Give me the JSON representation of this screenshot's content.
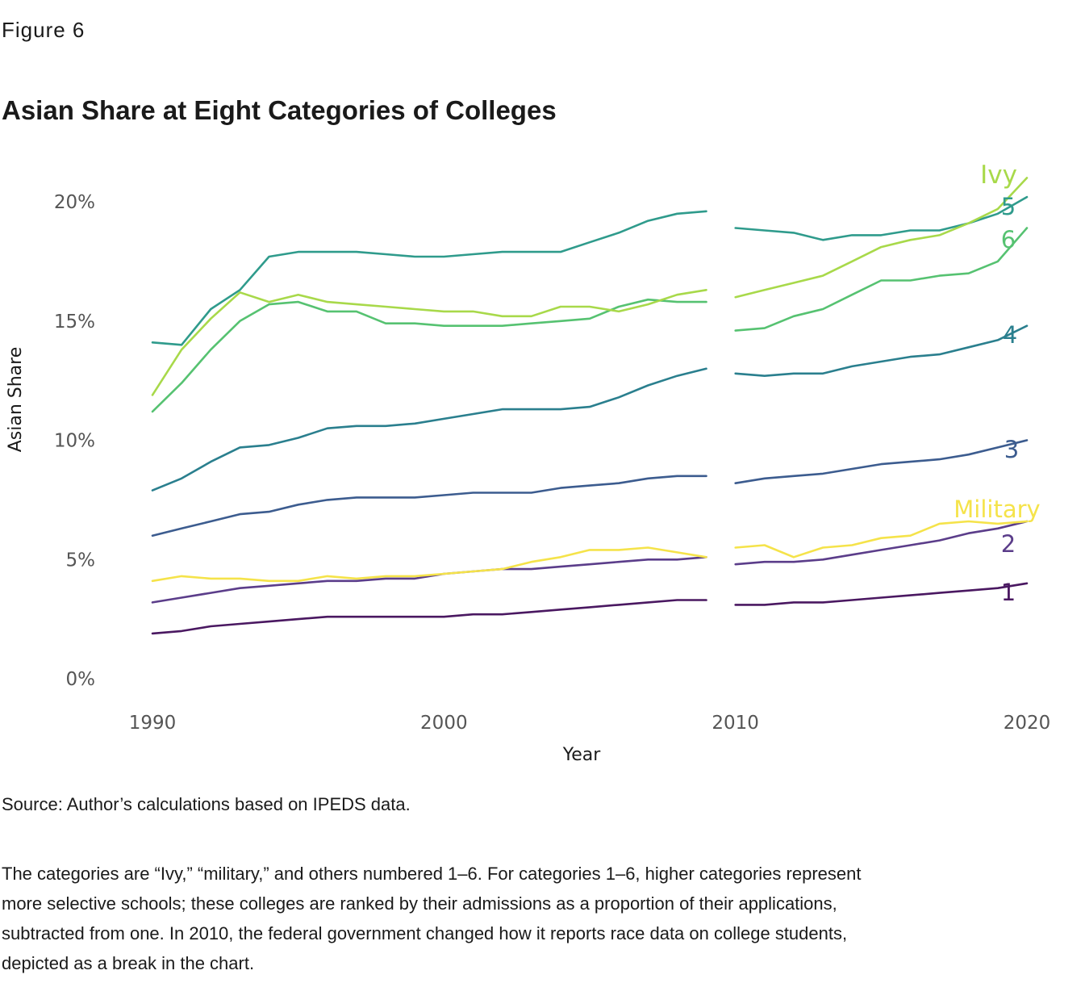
{
  "figure_label": "Figure 6",
  "title": "Asian Share at Eight Categories of Colleges",
  "source": "Source: Author’s calculations based on IPEDS data.",
  "note": "The categories are “Ivy,” “military,” and others numbered 1–6. For categories 1–6, higher categories represent more selective schools; these colleges are ranked by their admissions as a proportion of their applications, subtracted from one. In 2010, the federal government changed how it reports race data on college students, depicted as a break in the chart.",
  "chart_data": {
    "type": "line",
    "title": "Asian Share at Eight Categories of Colleges",
    "xlabel": "Year",
    "ylabel": "Asian Share",
    "xlim": [
      1990,
      2020
    ],
    "ylim": [
      0,
      20
    ],
    "x_ticks": [
      1990,
      2000,
      2010,
      2020
    ],
    "x_tick_labels": [
      "1990",
      "2000",
      "2010",
      "2020"
    ],
    "y_ticks": [
      0,
      5,
      10,
      15,
      20
    ],
    "y_tick_labels": [
      "0%",
      "5%",
      "10%",
      "15%",
      "20%"
    ],
    "grid": false,
    "legend": "direct labels at line ends",
    "series": [
      {
        "name": "Ivy",
        "color": "#a8d94a",
        "segments": [
          {
            "x": [
              1990,
              1991,
              1992,
              1993,
              1994,
              1995,
              1996,
              1997,
              1998,
              1999,
              2000,
              2001,
              2002,
              2003,
              2004,
              2005,
              2006,
              2007,
              2008,
              2009
            ],
            "y": [
              11.9,
              13.8,
              15.1,
              16.2,
              15.8,
              16.1,
              15.8,
              15.7,
              15.6,
              15.5,
              15.4,
              15.4,
              15.2,
              15.2,
              15.6,
              15.6,
              15.4,
              15.7,
              16.1,
              16.3
            ]
          },
          {
            "x": [
              2010,
              2011,
              2012,
              2013,
              2014,
              2015,
              2016,
              2017,
              2018,
              2019,
              2020
            ],
            "y": [
              16.0,
              16.3,
              16.6,
              16.9,
              17.5,
              18.1,
              18.4,
              18.6,
              19.1,
              19.7,
              21.0
            ]
          }
        ]
      },
      {
        "name": "5",
        "color": "#2f9b8c",
        "segments": [
          {
            "x": [
              1990,
              1991,
              1992,
              1993,
              1994,
              1995,
              1996,
              1997,
              1998,
              1999,
              2000,
              2001,
              2002,
              2003,
              2004,
              2005,
              2006,
              2007,
              2008,
              2009
            ],
            "y": [
              14.1,
              14.0,
              15.5,
              16.3,
              17.7,
              17.9,
              17.9,
              17.9,
              17.8,
              17.7,
              17.7,
              17.8,
              17.9,
              17.9,
              17.9,
              18.3,
              18.7,
              19.2,
              19.5,
              19.6
            ]
          },
          {
            "x": [
              2010,
              2011,
              2012,
              2013,
              2014,
              2015,
              2016,
              2017,
              2018,
              2019,
              2020
            ],
            "y": [
              18.9,
              18.8,
              18.7,
              18.4,
              18.6,
              18.6,
              18.8,
              18.8,
              19.1,
              19.5,
              20.2
            ]
          }
        ]
      },
      {
        "name": "6",
        "color": "#56c271",
        "segments": [
          {
            "x": [
              1990,
              1991,
              1992,
              1993,
              1994,
              1995,
              1996,
              1997,
              1998,
              1999,
              2000,
              2001,
              2002,
              2003,
              2004,
              2005,
              2006,
              2007,
              2008,
              2009
            ],
            "y": [
              11.2,
              12.4,
              13.8,
              15.0,
              15.7,
              15.8,
              15.4,
              15.4,
              14.9,
              14.9,
              14.8,
              14.8,
              14.8,
              14.9,
              15.0,
              15.1,
              15.6,
              15.9,
              15.8,
              15.8
            ]
          },
          {
            "x": [
              2010,
              2011,
              2012,
              2013,
              2014,
              2015,
              2016,
              2017,
              2018,
              2019,
              2020
            ],
            "y": [
              14.6,
              14.7,
              15.2,
              15.5,
              16.1,
              16.7,
              16.7,
              16.9,
              17.0,
              17.5,
              18.9
            ]
          }
        ]
      },
      {
        "name": "4",
        "color": "#2a7f8e",
        "segments": [
          {
            "x": [
              1990,
              1991,
              1992,
              1993,
              1994,
              1995,
              1996,
              1997,
              1998,
              1999,
              2000,
              2001,
              2002,
              2003,
              2004,
              2005,
              2006,
              2007,
              2008,
              2009
            ],
            "y": [
              7.9,
              8.4,
              9.1,
              9.7,
              9.8,
              10.1,
              10.5,
              10.6,
              10.6,
              10.7,
              10.9,
              11.1,
              11.3,
              11.3,
              11.3,
              11.4,
              11.8,
              12.3,
              12.7,
              13.0
            ]
          },
          {
            "x": [
              2010,
              2011,
              2012,
              2013,
              2014,
              2015,
              2016,
              2017,
              2018,
              2019,
              2020
            ],
            "y": [
              12.8,
              12.7,
              12.8,
              12.8,
              13.1,
              13.3,
              13.5,
              13.6,
              13.9,
              14.2,
              14.8
            ]
          }
        ]
      },
      {
        "name": "3",
        "color": "#3c5c8f",
        "segments": [
          {
            "x": [
              1990,
              1991,
              1992,
              1993,
              1994,
              1995,
              1996,
              1997,
              1998,
              1999,
              2000,
              2001,
              2002,
              2003,
              2004,
              2005,
              2006,
              2007,
              2008,
              2009
            ],
            "y": [
              6.0,
              6.3,
              6.6,
              6.9,
              7.0,
              7.3,
              7.5,
              7.6,
              7.6,
              7.6,
              7.7,
              7.8,
              7.8,
              7.8,
              8.0,
              8.1,
              8.2,
              8.4,
              8.5,
              8.5
            ]
          },
          {
            "x": [
              2010,
              2011,
              2012,
              2013,
              2014,
              2015,
              2016,
              2017,
              2018,
              2019,
              2020
            ],
            "y": [
              8.2,
              8.4,
              8.5,
              8.6,
              8.8,
              9.0,
              9.1,
              9.2,
              9.4,
              9.7,
              10.0
            ]
          }
        ]
      },
      {
        "name": "Military",
        "color": "#f5e34a",
        "segments": [
          {
            "x": [
              1990,
              1991,
              1992,
              1993,
              1994,
              1995,
              1996,
              1997,
              1998,
              1999,
              2000,
              2001,
              2002,
              2003,
              2004,
              2005,
              2006,
              2007,
              2008,
              2009
            ],
            "y": [
              4.1,
              4.3,
              4.2,
              4.2,
              4.1,
              4.1,
              4.3,
              4.2,
              4.3,
              4.3,
              4.4,
              4.5,
              4.6,
              4.9,
              5.1,
              5.4,
              5.4,
              5.5,
              5.3,
              5.1
            ]
          },
          {
            "x": [
              2010,
              2011,
              2012,
              2013,
              2014,
              2015,
              2016,
              2017,
              2018,
              2019,
              2020
            ],
            "y": [
              5.5,
              5.6,
              5.1,
              5.5,
              5.6,
              5.9,
              6.0,
              6.5,
              6.6,
              6.5,
              6.6
            ]
          }
        ]
      },
      {
        "name": "2",
        "color": "#5b3d8a",
        "segments": [
          {
            "x": [
              1990,
              1991,
              1992,
              1993,
              1994,
              1995,
              1996,
              1997,
              1998,
              1999,
              2000,
              2001,
              2002,
              2003,
              2004,
              2005,
              2006,
              2007,
              2008,
              2009
            ],
            "y": [
              3.2,
              3.4,
              3.6,
              3.8,
              3.9,
              4.0,
              4.1,
              4.1,
              4.2,
              4.2,
              4.4,
              4.5,
              4.6,
              4.6,
              4.7,
              4.8,
              4.9,
              5.0,
              5.0,
              5.1
            ]
          },
          {
            "x": [
              2010,
              2011,
              2012,
              2013,
              2014,
              2015,
              2016,
              2017,
              2018,
              2019,
              2020
            ],
            "y": [
              4.8,
              4.9,
              4.9,
              5.0,
              5.2,
              5.4,
              5.6,
              5.8,
              6.1,
              6.3,
              6.6
            ]
          }
        ]
      },
      {
        "name": "1",
        "color": "#4a1861",
        "segments": [
          {
            "x": [
              1990,
              1991,
              1992,
              1993,
              1994,
              1995,
              1996,
              1997,
              1998,
              1999,
              2000,
              2001,
              2002,
              2003,
              2004,
              2005,
              2006,
              2007,
              2008,
              2009
            ],
            "y": [
              1.9,
              2.0,
              2.2,
              2.3,
              2.4,
              2.5,
              2.6,
              2.6,
              2.6,
              2.6,
              2.6,
              2.7,
              2.7,
              2.8,
              2.9,
              3.0,
              3.1,
              3.2,
              3.3,
              3.3
            ]
          },
          {
            "x": [
              2010,
              2011,
              2012,
              2013,
              2014,
              2015,
              2016,
              2017,
              2018,
              2019,
              2020
            ],
            "y": [
              3.1,
              3.1,
              3.2,
              3.2,
              3.3,
              3.4,
              3.5,
              3.6,
              3.7,
              3.8,
              4.0
            ]
          }
        ]
      }
    ]
  }
}
